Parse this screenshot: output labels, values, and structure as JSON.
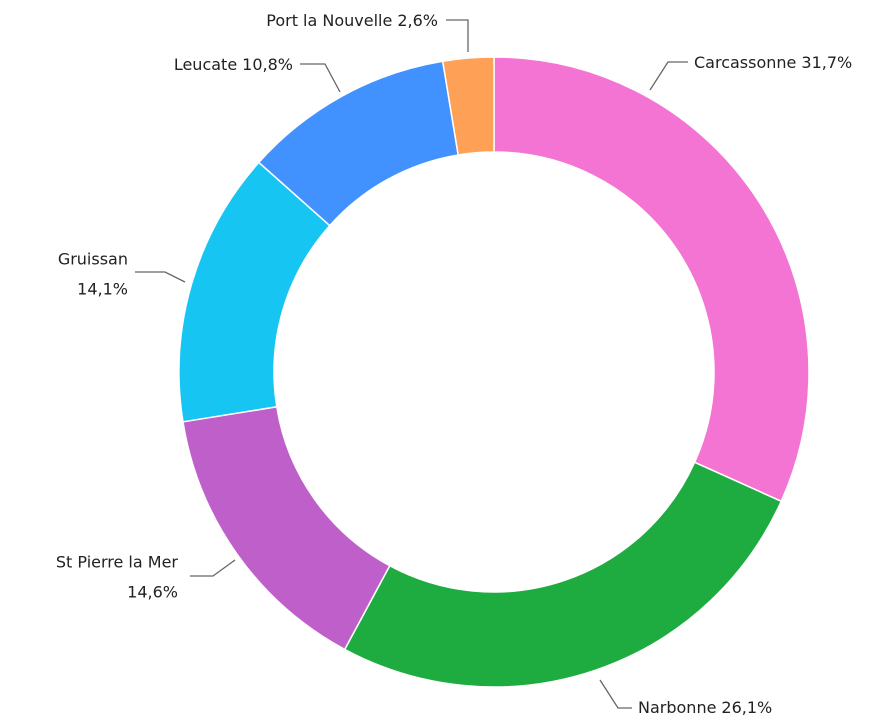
{
  "chart_data": {
    "type": "donut",
    "categories": [
      "Carcassonne",
      "Narbonne",
      "St Pierre la Mer",
      "Gruissan",
      "Leucate",
      "Port la Nouvelle"
    ],
    "values": [
      31.7,
      26.1,
      14.6,
      14.1,
      10.8,
      2.6
    ],
    "value_labels": [
      "31,7%",
      "26,1%",
      "14,6%",
      "14,1%",
      "10,8%",
      "2,6%"
    ],
    "colors": [
      "#f374d3",
      "#1eab40",
      "#bf5fca",
      "#17c5f3",
      "#4192ff",
      "#ffa057"
    ]
  }
}
